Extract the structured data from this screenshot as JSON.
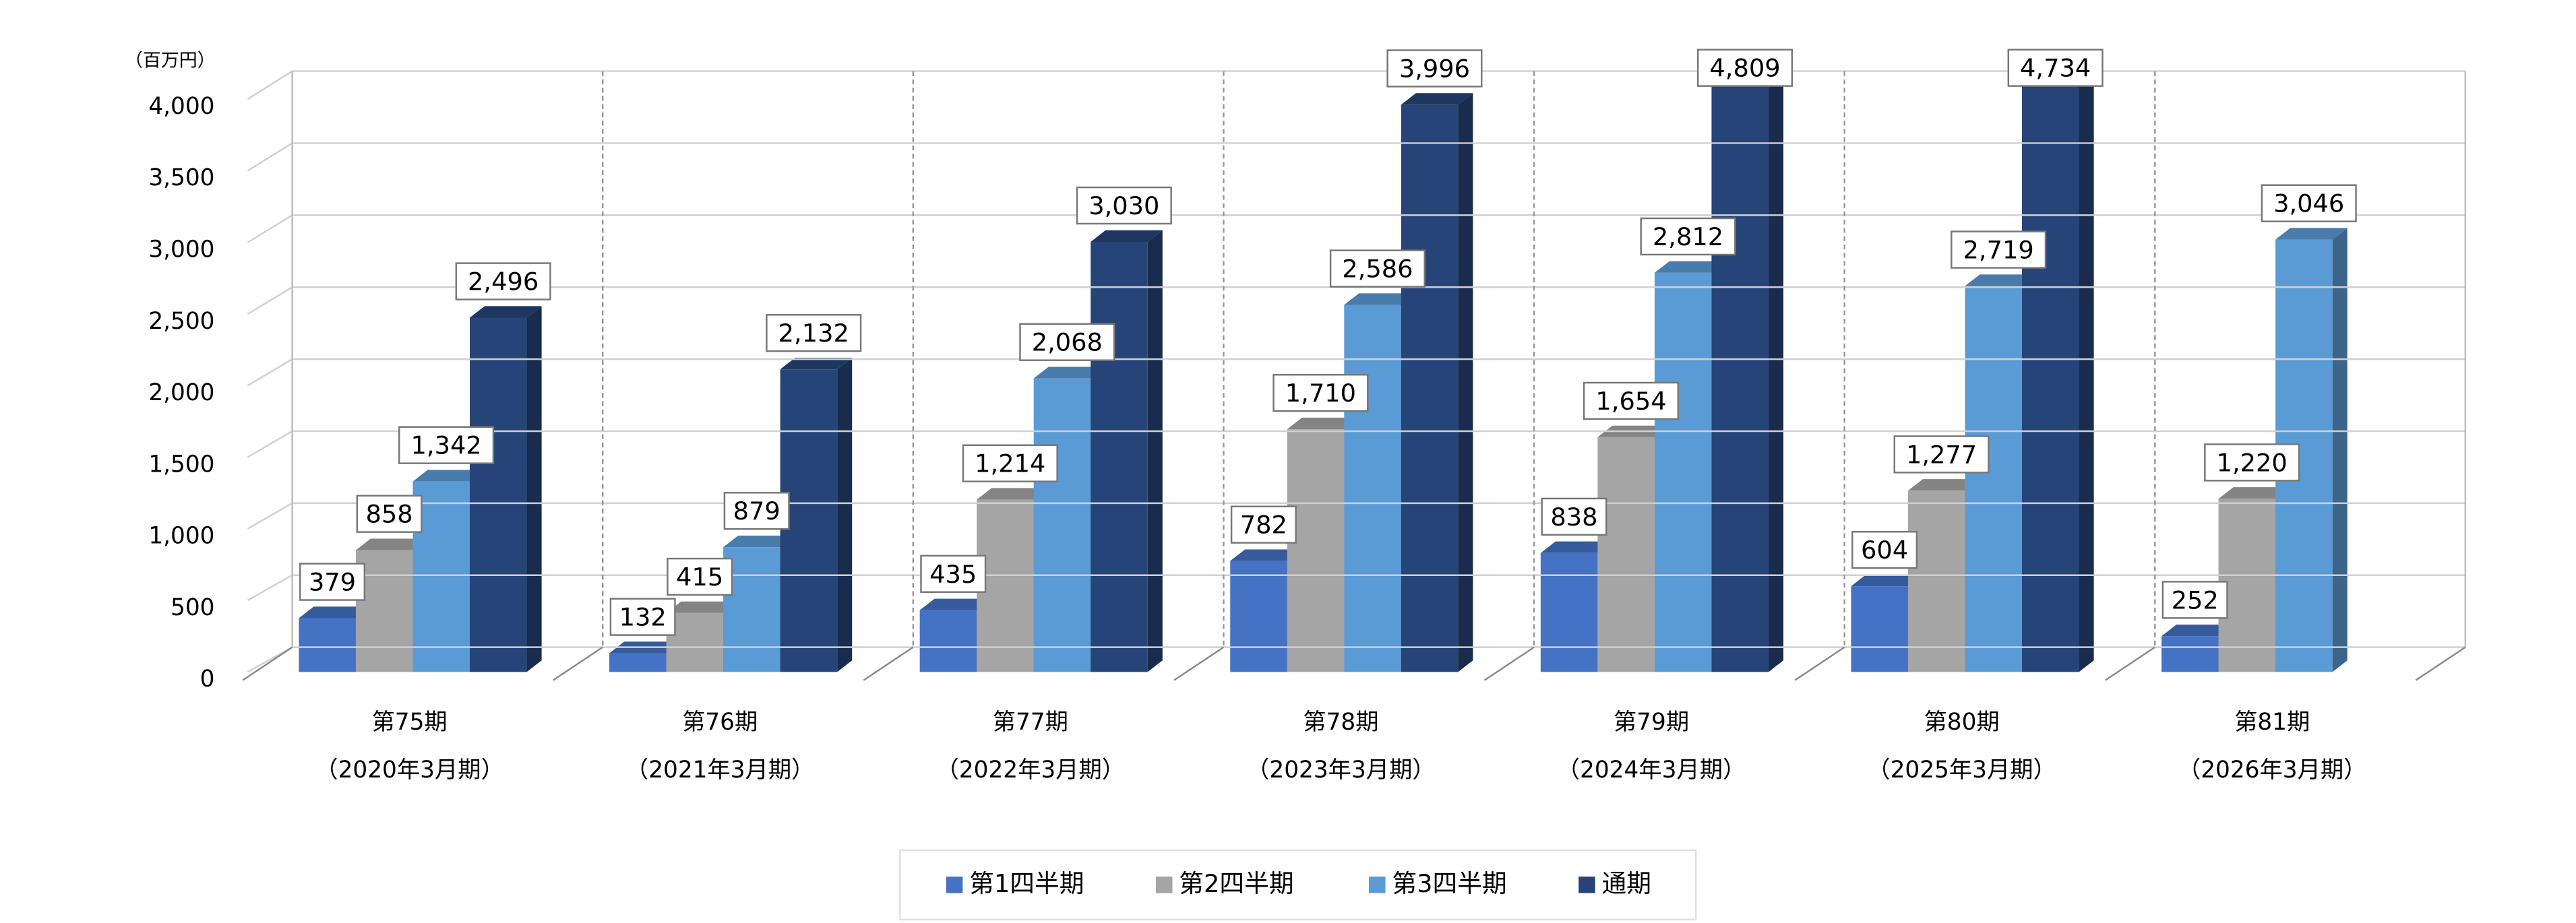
{
  "chart_data": {
    "type": "bar3d",
    "unit_label": "（百万円）",
    "categories": [
      [
        "第75期",
        "（2020年3月期）"
      ],
      [
        "第76期",
        "（2021年3月期）"
      ],
      [
        "第77期",
        "（2022年3月期）"
      ],
      [
        "第78期",
        "（2023年3月期）"
      ],
      [
        "第79期",
        "（2024年3月期）"
      ],
      [
        "第80期",
        "（2025年3月期）"
      ],
      [
        "第81期",
        "（2026年3月期）"
      ]
    ],
    "series": [
      {
        "name": "第1四半期",
        "color": "#4472c4",
        "values": [
          379,
          132,
          435,
          782,
          838,
          604,
          252
        ],
        "value_labels": [
          "379",
          "132",
          "435",
          "782",
          "838",
          "604",
          "252"
        ]
      },
      {
        "name": "第2四半期",
        "color": "#a5a5a5",
        "values": [
          858,
          415,
          1214,
          1710,
          1654,
          1277,
          1220
        ],
        "value_labels": [
          "858",
          "415",
          "1,214",
          "1,710",
          "1,654",
          "1,277",
          "1,220"
        ]
      },
      {
        "name": "第3四半期",
        "color": "#5b9bd5",
        "values": [
          1342,
          879,
          2068,
          2586,
          2812,
          2719,
          3046
        ],
        "value_labels": [
          "1,342",
          "879",
          "2,068",
          "2,586",
          "2,812",
          "2,719",
          "3,046"
        ]
      },
      {
        "name": "通期",
        "color": "#264478",
        "values": [
          2496,
          2132,
          3030,
          3996,
          4809,
          4734,
          null
        ],
        "value_labels": [
          "2,496",
          "2,132",
          "3,030",
          "3,996",
          "4,809",
          "4,734",
          null
        ]
      }
    ],
    "ylim": [
      0,
      4000
    ],
    "yticks": [
      0,
      500,
      {
        "value": 1000,
        "label": "1,000"
      },
      {
        "value": 1500,
        "label": "1,500"
      },
      {
        "value": 2000,
        "label": "2,000"
      },
      {
        "value": 2500,
        "label": "2,500"
      },
      {
        "value": 3000,
        "label": "3,000"
      },
      {
        "value": 3500,
        "label": "3,500"
      },
      {
        "value": 4000,
        "label": "4,000"
      }
    ],
    "grid": true,
    "legend": "bottom"
  }
}
